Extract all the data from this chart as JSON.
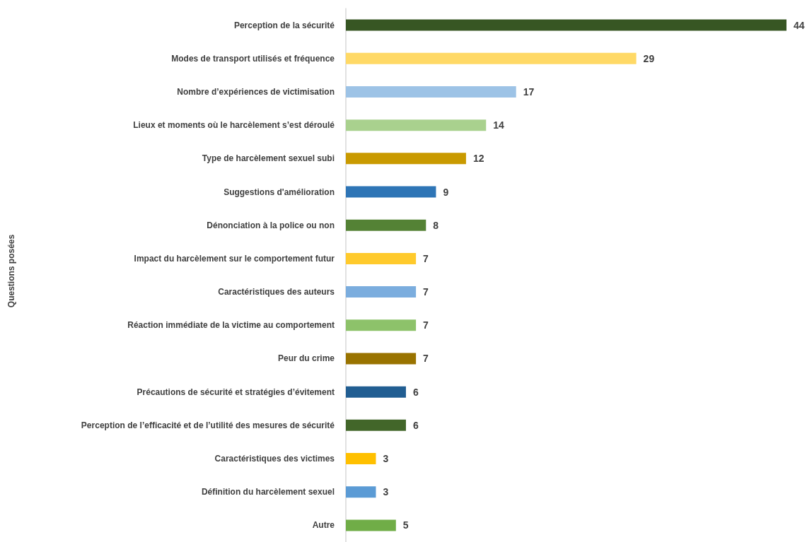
{
  "chart_data": {
    "type": "bar",
    "orientation": "horizontal",
    "annotations": [
      "Questions posées"
    ],
    "categories": [
      "Perception de la sécurité",
      "Modes de transport utilisés et fréquence",
      "Nombre d’expériences de victimisation",
      "Lieux et moments où le harcèlement s’est déroulé",
      "Type de harcèlement sexuel subi",
      "Suggestions d'amélioration",
      "Dénonciation à la police ou non",
      "Impact du harcèlement sur le comportement futur",
      "Caractéristiques des auteurs",
      "Réaction immédiate de la victime au comportement",
      "Peur du crime",
      "Précautions de sécurité et stratégies d’évitement",
      "Perception de l’efficacité et de l’utilité des mesures de sécurité",
      "Caractéristiques des victimes",
      "Définition du harcèlement sexuel",
      "Autre"
    ],
    "values": [
      44,
      29,
      17,
      14,
      12,
      9,
      8,
      7,
      7,
      7,
      7,
      6,
      6,
      3,
      3,
      5
    ],
    "colors": [
      "#375623",
      "#ffd966",
      "#9dc3e6",
      "#a9d18e",
      "#c99a00",
      "#2e75b6",
      "#548235",
      "#ffca2c",
      "#7badde",
      "#8dc26a",
      "#997300",
      "#215e92",
      "#426629",
      "#ffc000",
      "#5b9bd5",
      "#70ad47"
    ],
    "data_labels": true,
    "grid": false
  }
}
